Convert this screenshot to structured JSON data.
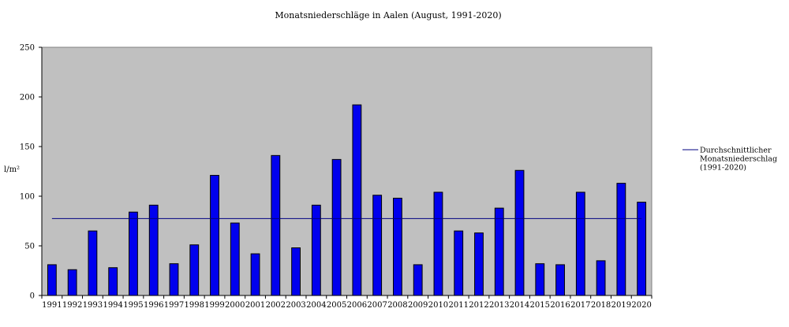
{
  "chart_data": {
    "type": "bar",
    "title": "Monatsniederschläge in Aalen (August, 1991-2020)",
    "ylabel": "l/m²",
    "xlabel": "",
    "ylim": [
      0,
      250
    ],
    "yticks": [
      0,
      50,
      100,
      150,
      200,
      250
    ],
    "grid": false,
    "legend_position": "right",
    "colors": {
      "bar": "#0000ee",
      "average_line": "#000080",
      "plot_background": "#c0c0c0"
    },
    "categories": [
      "1991",
      "1992",
      "1993",
      "1994",
      "1995",
      "1996",
      "1997",
      "1998",
      "1999",
      "2000",
      "2001",
      "2002",
      "2003",
      "2004",
      "2005",
      "2006",
      "2007",
      "2008",
      "2009",
      "2010",
      "2011",
      "2012",
      "2013",
      "2014",
      "2015",
      "2016",
      "2017",
      "2018",
      "2019",
      "2020"
    ],
    "series": [
      {
        "values": [
          31,
          26,
          65,
          28,
          84,
          91,
          32,
          51,
          121,
          73,
          42,
          141,
          48,
          91,
          137,
          192,
          101,
          98,
          31,
          104,
          65,
          63,
          88,
          126,
          32,
          31,
          104,
          35,
          113,
          94
        ]
      }
    ],
    "reference_lines": [
      {
        "legend_lines": [
          "Durchschnittlicher",
          "Monatsniederschlag",
          "(1991-2020)"
        ],
        "value": 77.5
      }
    ]
  }
}
